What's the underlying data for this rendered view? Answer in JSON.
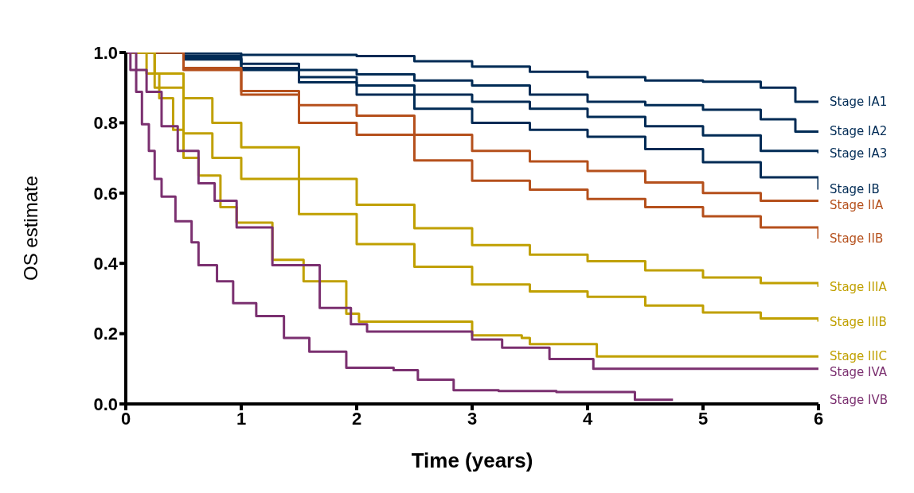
{
  "chart_data": {
    "type": "step",
    "xlabel": "Time (years)",
    "ylabel": "OS estimate",
    "xlim": [
      0,
      6
    ],
    "xticks": [
      0,
      1,
      2,
      3,
      4,
      5,
      6
    ],
    "ylim": [
      0,
      1
    ],
    "yticks": [
      {
        "value": 0,
        "label": "0.0"
      },
      {
        "value": 0.2,
        "label": "0.2"
      },
      {
        "value": 0.4,
        "label": "0.4"
      },
      {
        "value": 0.6,
        "label": "0.6"
      },
      {
        "value": 0.8,
        "label": "0.8"
      },
      {
        "value": 1,
        "label": "1.0"
      }
    ],
    "grid": false,
    "legend": false,
    "marker": "none",
    "line_style": "solid",
    "series": [
      {
        "name": "Stage IA1",
        "color": "#002b55",
        "x": [
          0,
          0.5,
          1,
          2,
          2.5,
          3,
          3.5,
          4,
          4.5,
          5,
          5.5,
          5.8,
          6
        ],
        "values": [
          1,
          0.997,
          0.993,
          0.99,
          0.975,
          0.96,
          0.945,
          0.93,
          0.92,
          0.917,
          0.9,
          0.86,
          0.86
        ]
      },
      {
        "name": "Stage IA2",
        "color": "#002b55",
        "x": [
          0,
          0.5,
          1,
          1.5,
          2,
          2.5,
          3,
          3.5,
          4,
          4.5,
          5,
          5.5,
          5.8,
          6
        ],
        "values": [
          1,
          0.99,
          0.968,
          0.95,
          0.938,
          0.92,
          0.906,
          0.88,
          0.86,
          0.85,
          0.837,
          0.81,
          0.775,
          0.775
        ]
      },
      {
        "name": "Stage IA3",
        "color": "#002b55",
        "x": [
          0,
          0.5,
          1,
          1.5,
          2,
          2.5,
          3,
          3.5,
          4,
          4.5,
          5,
          5.5,
          6
        ],
        "values": [
          1,
          0.983,
          0.956,
          0.93,
          0.906,
          0.88,
          0.86,
          0.84,
          0.817,
          0.79,
          0.764,
          0.72,
          0.713
        ]
      },
      {
        "name": "Stage IB",
        "color": "#002b55",
        "x": [
          0,
          0.5,
          1,
          1.5,
          2,
          2.5,
          3,
          3.5,
          4,
          4.5,
          5,
          5.5,
          6
        ],
        "values": [
          1,
          0.98,
          0.95,
          0.915,
          0.88,
          0.84,
          0.8,
          0.78,
          0.76,
          0.725,
          0.688,
          0.645,
          0.61
        ]
      },
      {
        "name": "Stage IIA",
        "color": "#b5501c",
        "x": [
          0,
          0.5,
          1,
          1.5,
          2,
          2.5,
          3,
          3.5,
          4,
          4.5,
          5,
          5.5,
          6
        ],
        "values": [
          1,
          0.956,
          0.89,
          0.85,
          0.82,
          0.766,
          0.72,
          0.69,
          0.663,
          0.63,
          0.6,
          0.578,
          0.578
        ]
      },
      {
        "name": "Stage IIB",
        "color": "#b5501c",
        "x": [
          0,
          0.5,
          1,
          1.5,
          2,
          2.5,
          3,
          3.5,
          4,
          4.5,
          5,
          5.5,
          6
        ],
        "values": [
          1,
          0.95,
          0.88,
          0.8,
          0.766,
          0.693,
          0.635,
          0.61,
          0.583,
          0.56,
          0.534,
          0.502,
          0.47
        ]
      },
      {
        "name": "Stage IIIA",
        "color": "#c0a000",
        "x": [
          0,
          0.25,
          0.5,
          0.75,
          1,
          1.5,
          2,
          2.5,
          3,
          3.5,
          4,
          4.5,
          5,
          5.5,
          6
        ],
        "values": [
          1,
          0.94,
          0.87,
          0.8,
          0.73,
          0.64,
          0.567,
          0.5,
          0.452,
          0.425,
          0.406,
          0.38,
          0.36,
          0.344,
          0.333
        ]
      },
      {
        "name": "Stage IIIB",
        "color": "#c0a000",
        "x": [
          0,
          0.25,
          0.5,
          0.75,
          1,
          1.5,
          2,
          2.5,
          3,
          3.5,
          4,
          4.5,
          5,
          5.5,
          6
        ],
        "values": [
          1,
          0.9,
          0.77,
          0.7,
          0.64,
          0.54,
          0.455,
          0.39,
          0.34,
          0.32,
          0.305,
          0.28,
          0.26,
          0.243,
          0.234
        ]
      },
      {
        "name": "Stage IIIC",
        "color": "#c0a000",
        "x": [
          0,
          0.18,
          0.29,
          0.41,
          0.5,
          0.63,
          0.82,
          0.96,
          1.27,
          1.54,
          1.91,
          2.02,
          3,
          3.43,
          3.5,
          4,
          4.08,
          6
        ],
        "values": [
          1,
          0.94,
          0.87,
          0.78,
          0.7,
          0.65,
          0.56,
          0.516,
          0.41,
          0.349,
          0.257,
          0.234,
          0.195,
          0.188,
          0.17,
          0.17,
          0.135,
          0.135
        ]
      },
      {
        "name": "Stage IVA",
        "color": "#7b3070",
        "x": [
          0,
          0.09,
          0.18,
          0.31,
          0.45,
          0.63,
          0.77,
          0.96,
          1.27,
          1.68,
          1.95,
          2.09,
          3,
          3.26,
          3.67,
          4.05,
          6
        ],
        "values": [
          1,
          0.95,
          0.888,
          0.79,
          0.72,
          0.628,
          0.578,
          0.502,
          0.395,
          0.273,
          0.227,
          0.206,
          0.183,
          0.16,
          0.128,
          0.1,
          0.1
        ]
      },
      {
        "name": "Stage IVB",
        "color": "#7b3070",
        "x": [
          0,
          0.04,
          0.09,
          0.14,
          0.2,
          0.25,
          0.31,
          0.43,
          0.57,
          0.63,
          0.79,
          0.93,
          1.13,
          1.37,
          1.59,
          1.91,
          2.32,
          2.53,
          2.84,
          3.23,
          3.73,
          4.41,
          4.74
        ],
        "values": [
          1,
          0.95,
          0.888,
          0.796,
          0.72,
          0.64,
          0.59,
          0.52,
          0.46,
          0.395,
          0.349,
          0.287,
          0.25,
          0.188,
          0.149,
          0.103,
          0.096,
          0.069,
          0.039,
          0.037,
          0.034,
          0.012,
          0.012
        ]
      }
    ]
  }
}
